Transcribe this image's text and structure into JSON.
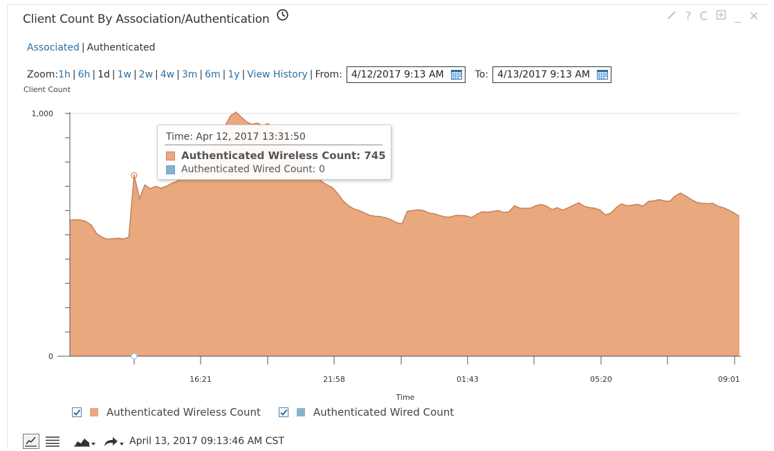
{
  "header": {
    "title": "Client Count By Association/Authentication",
    "icons": [
      "clock-icon",
      "pencil-icon",
      "help-icon",
      "refresh-icon",
      "expand-icon",
      "minimize-icon",
      "close-icon"
    ],
    "help_glyph": "?",
    "refresh_glyph": "C",
    "minimize_glyph": "_",
    "close_glyph": "✕"
  },
  "modes": {
    "associated": "Associated",
    "separator": "|",
    "authenticated": "Authenticated"
  },
  "zoom": {
    "label": "Zoom:",
    "options": [
      "1h",
      "6h",
      "1d",
      "1w",
      "2w",
      "4w",
      "3m",
      "6m",
      "1y",
      "View History"
    ],
    "selected": "1d",
    "from_label": "From:",
    "from_value": "4/12/2017 9:13 AM",
    "to_label": "To:",
    "to_value": "4/13/2017 9:13 AM"
  },
  "colors": {
    "wireless": "#e9a87e",
    "wireless_stroke": "#c9835a",
    "wired": "#88b3cf",
    "link": "#2b6fa3"
  },
  "tooltip": {
    "time": "Time: Apr 12, 2017 13:31:50",
    "wireless": "Authenticated Wireless Count: 745",
    "wired": "Authenticated Wired Count: 0"
  },
  "chart_data": {
    "type": "area",
    "ylabel": "Client Count",
    "xlabel": "Time",
    "ylim": [
      0,
      1000
    ],
    "yticks": [
      "0",
      "1,000"
    ],
    "xticks": [
      "16:21",
      "21:58",
      "01:43",
      "05:20",
      "09:01"
    ],
    "grid": false,
    "legend": "bottom",
    "series": [
      {
        "name": "Authenticated Wireless Count",
        "color": "#e9a87e",
        "values": [
          560,
          562,
          561,
          555,
          540,
          505,
          490,
          482,
          484,
          486,
          483,
          490,
          745,
          650,
          705,
          690,
          700,
          692,
          700,
          712,
          720,
          750,
          770,
          785,
          800,
          820,
          840,
          870,
          910,
          950,
          990,
          1005,
          985,
          965,
          955,
          960,
          950,
          958,
          940,
          945,
          920,
          885,
          855,
          820,
          795,
          770,
          745,
          720,
          705,
          695,
          670,
          640,
          620,
          607,
          600,
          590,
          580,
          577,
          575,
          570,
          562,
          550,
          545,
          597,
          600,
          603,
          600,
          590,
          587,
          580,
          574,
          573,
          580,
          580,
          578,
          571,
          585,
          595,
          593,
          597,
          600,
          592,
          595,
          620,
          610,
          609,
          610,
          620,
          625,
          618,
          604,
          612,
          601,
          611,
          622,
          632,
          618,
          612,
          610,
          602,
          582,
          590,
          612,
          628,
          620,
          622,
          626,
          618,
          638,
          640,
          645,
          640,
          638,
          660,
          672,
          660,
          646,
          634,
          630,
          628,
          630,
          618,
          612,
          602,
          590,
          576
        ]
      },
      {
        "name": "Authenticated Wired Count",
        "color": "#88b3cf",
        "values": [
          0
        ]
      }
    ]
  },
  "legend": {
    "wireless": "Authenticated Wireless Count",
    "wired": "Authenticated Wired Count"
  },
  "footer": {
    "timestamp": "April 13, 2017 09:13:46 AM CST"
  }
}
